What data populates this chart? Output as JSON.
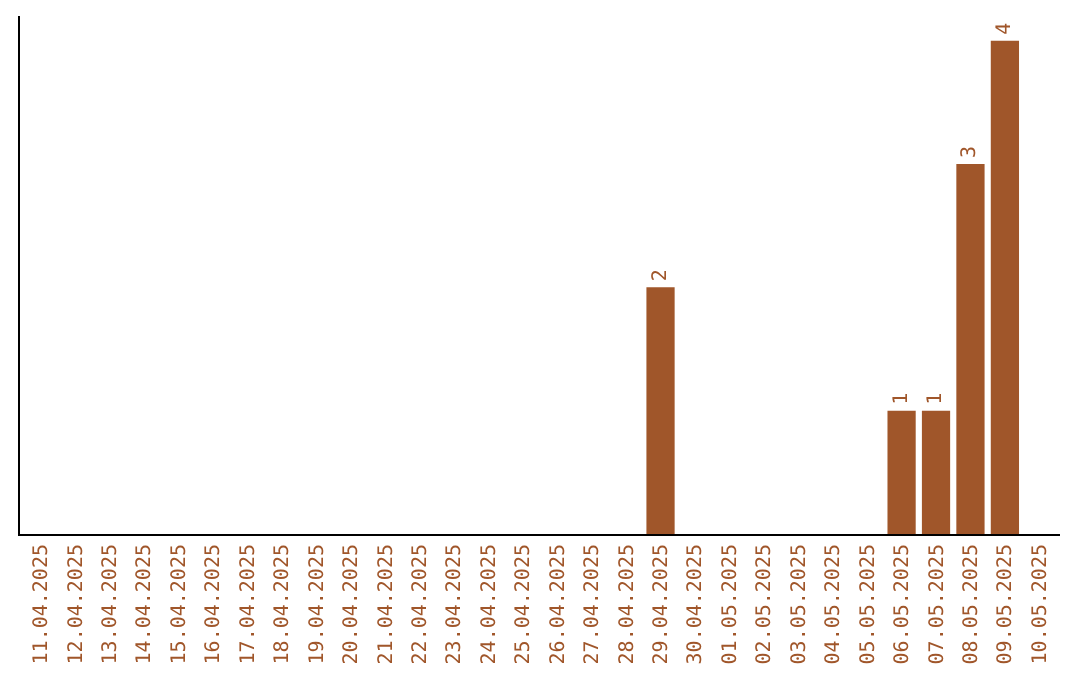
{
  "chart_data": {
    "type": "bar",
    "categories": [
      "11.04.2025",
      "12.04.2025",
      "13.04.2025",
      "14.04.2025",
      "15.04.2025",
      "16.04.2025",
      "17.04.2025",
      "18.04.2025",
      "19.04.2025",
      "20.04.2025",
      "21.04.2025",
      "22.04.2025",
      "23.04.2025",
      "24.04.2025",
      "25.04.2025",
      "26.04.2025",
      "27.04.2025",
      "28.04.2025",
      "29.04.2025",
      "30.04.2025",
      "01.05.2025",
      "02.05.2025",
      "03.05.2025",
      "04.05.2025",
      "05.05.2025",
      "06.05.2025",
      "07.05.2025",
      "08.05.2025",
      "09.05.2025",
      "10.05.2025"
    ],
    "values": [
      null,
      null,
      null,
      null,
      null,
      null,
      null,
      null,
      null,
      null,
      null,
      null,
      null,
      null,
      null,
      null,
      null,
      null,
      2,
      null,
      null,
      null,
      null,
      null,
      null,
      1,
      1,
      3,
      4,
      null
    ],
    "value_labels": [
      null,
      null,
      null,
      null,
      null,
      null,
      null,
      null,
      null,
      null,
      null,
      null,
      null,
      null,
      null,
      null,
      null,
      null,
      "2",
      null,
      null,
      null,
      null,
      null,
      null,
      "1",
      "1",
      "3",
      "4",
      null
    ],
    "color": "#a0562a",
    "ylim": [
      0,
      4.2
    ],
    "tick_labels": "x"
  }
}
